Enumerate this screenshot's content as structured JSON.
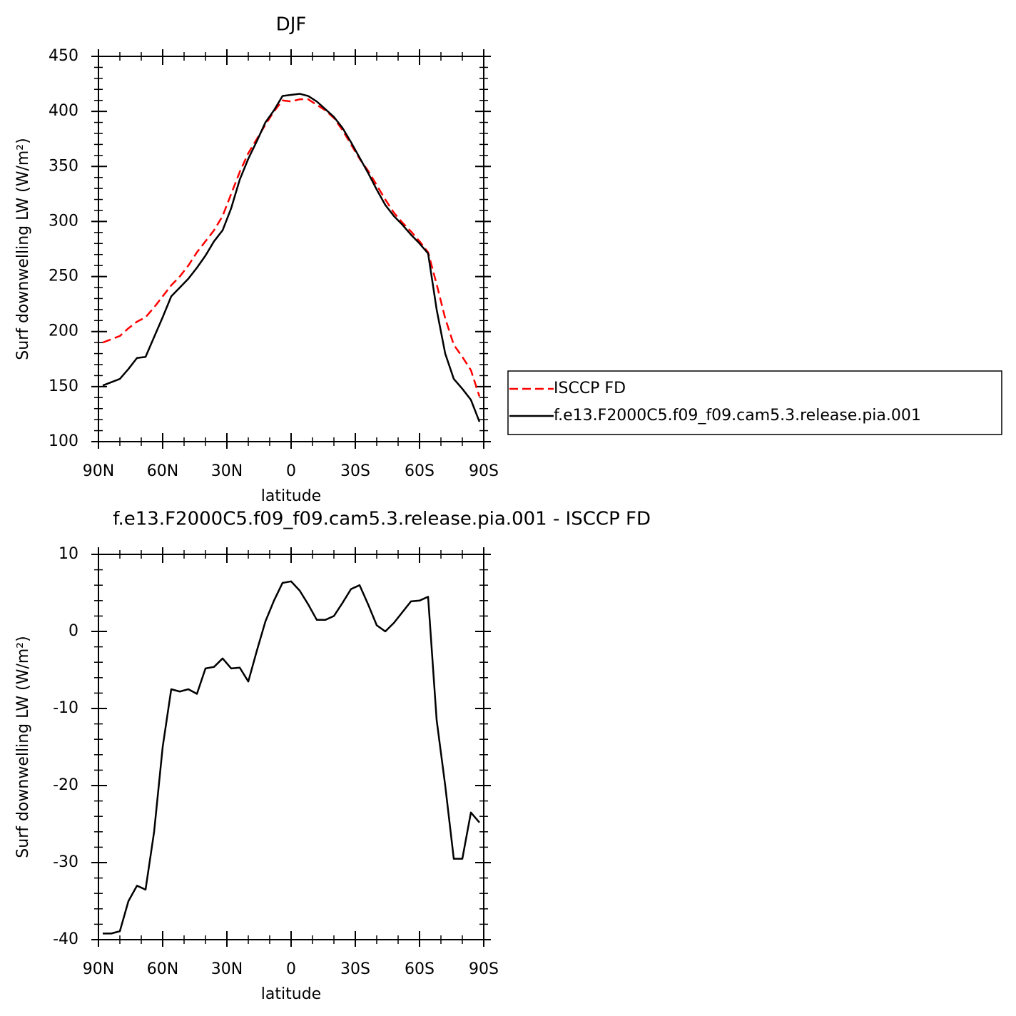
{
  "chart_data": [
    {
      "type": "line",
      "title": "DJF",
      "xlabel": "latitude",
      "ylabel": "Surf downwelling LW (W/m²)",
      "x": [
        88,
        84,
        80,
        76,
        72,
        68,
        64,
        60,
        56,
        52,
        48,
        44,
        40,
        36,
        32,
        28,
        24,
        20,
        16,
        12,
        8,
        4,
        0,
        -4,
        -8,
        -12,
        -16,
        -20,
        -24,
        -28,
        -32,
        -36,
        -40,
        -44,
        -48,
        -52,
        -56,
        -60,
        -64,
        -68,
        -72,
        -76,
        -80,
        -84,
        -88
      ],
      "series": [
        {
          "name": "ISCCP FD",
          "color": "#ff0000",
          "dashed": true,
          "values": [
            190,
            193,
            196,
            203,
            209,
            213,
            222,
            232,
            242,
            250,
            260,
            272,
            282,
            292,
            305,
            325,
            345,
            362,
            375,
            388,
            400,
            410,
            409,
            411,
            411,
            406,
            401,
            394,
            383,
            370,
            357,
            346,
            333,
            320,
            308,
            299,
            291,
            282,
            272,
            243,
            212,
            188,
            177,
            165,
            141
          ]
        },
        {
          "name": "f.e13.F2000C5.f09_f09.cam5.3.release.pia.001",
          "color": "#000000",
          "dashed": false,
          "values": [
            151,
            154,
            157,
            166,
            176,
            177,
            195,
            213,
            232,
            240,
            248,
            258,
            269,
            282,
            292,
            312,
            338,
            357,
            373,
            390,
            401,
            414,
            415,
            416,
            414,
            409,
            402,
            395,
            385,
            372,
            358,
            344,
            329,
            315,
            305,
            297,
            288,
            280,
            271,
            220,
            180,
            157,
            148,
            138,
            118
          ]
        }
      ],
      "xlim": [
        90,
        -90
      ],
      "ylim": [
        100,
        450
      ],
      "xticks": [
        {
          "value": 90,
          "label": "90N"
        },
        {
          "value": 60,
          "label": "60N"
        },
        {
          "value": 30,
          "label": "30N"
        },
        0,
        {
          "value": -30,
          "label": "30S"
        },
        {
          "value": -60,
          "label": "60S"
        },
        {
          "value": -90,
          "label": "90S"
        }
      ],
      "yticks": [
        100,
        150,
        200,
        250,
        300,
        350,
        400,
        450
      ],
      "legend": "right"
    },
    {
      "type": "line",
      "title": "f.e13.F2000C5.f09_f09.cam5.3.release.pia.001 - ISCCP FD",
      "xlabel": "latitude",
      "ylabel": "Surf downwelling LW (W/m²)",
      "x": [
        88,
        84,
        80,
        76,
        72,
        68,
        64,
        60,
        56,
        52,
        48,
        44,
        40,
        36,
        32,
        28,
        24,
        20,
        16,
        12,
        8,
        4,
        0,
        -4,
        -8,
        -12,
        -16,
        -20,
        -24,
        -28,
        -32,
        -36,
        -40,
        -44,
        -48,
        -52,
        -56,
        -60,
        -64,
        -68,
        -72,
        -76,
        -80,
        -84,
        -88
      ],
      "series": [
        {
          "color": "#000000",
          "dashed": false,
          "values": [
            -39.2,
            -39.2,
            -38.9,
            -35,
            -33,
            -33.5,
            -26,
            -15,
            -7.5,
            -7.8,
            -7.5,
            -8.1,
            -4.8,
            -4.6,
            -3.5,
            -4.8,
            -4.7,
            -6.5,
            -2.5,
            1.3,
            4,
            6.3,
            6.5,
            5.3,
            3.5,
            1.5,
            1.5,
            2,
            3.7,
            5.5,
            6,
            3.5,
            0.8,
            0,
            1.1,
            2.5,
            3.9,
            4,
            4.5,
            -11.5,
            -20,
            -29.5,
            -29.5,
            -23.5,
            -24.8
          ]
        }
      ],
      "xlim": [
        90,
        -90
      ],
      "ylim": [
        -40,
        10
      ],
      "xticks": [
        {
          "value": 90,
          "label": "90N"
        },
        {
          "value": 60,
          "label": "60N"
        },
        {
          "value": 30,
          "label": "30N"
        },
        0,
        {
          "value": -30,
          "label": "30S"
        },
        {
          "value": -60,
          "label": "60S"
        },
        {
          "value": -90,
          "label": "90S"
        }
      ],
      "yticks": [
        -40,
        -30,
        -20,
        -10,
        0,
        10
      ]
    }
  ]
}
